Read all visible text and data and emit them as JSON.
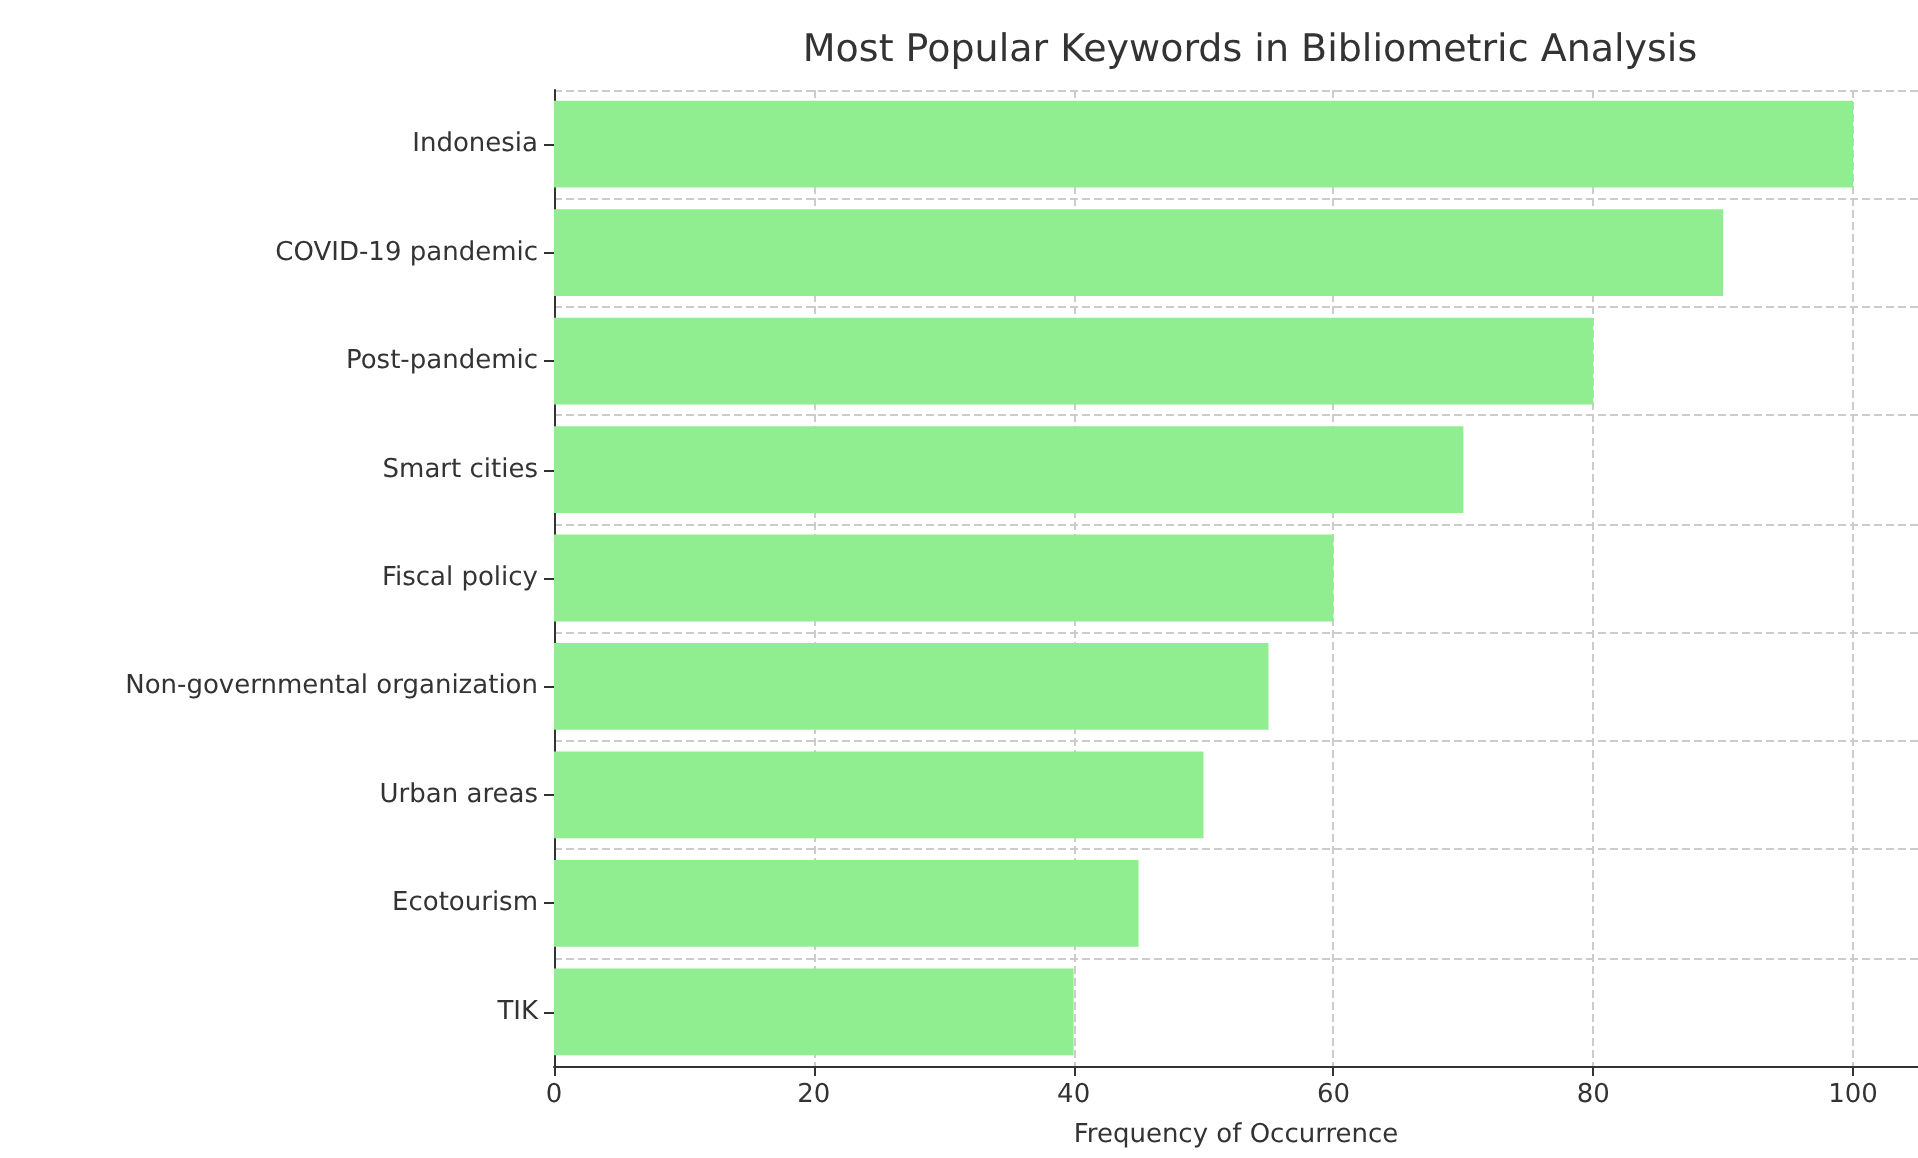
{
  "chart_data": {
    "type": "bar",
    "orientation": "horizontal",
    "title": "Most Popular Keywords in Bibliometric Analysis",
    "xlabel": "Frequency of Occurrence",
    "categories": [
      "Indonesia",
      "COVID-19 pandemic",
      "Post-pandemic",
      "Smart cities",
      "Fiscal policy",
      "Non-governmental organization",
      "Urban areas",
      "Ecotourism",
      "TIK"
    ],
    "values": [
      100,
      90,
      80,
      70,
      60,
      55,
      50,
      45,
      40
    ],
    "color": "#90ee90",
    "xlim": [
      0,
      105
    ],
    "xticks": [
      0,
      20,
      40,
      60,
      80,
      100
    ],
    "grid": true
  }
}
